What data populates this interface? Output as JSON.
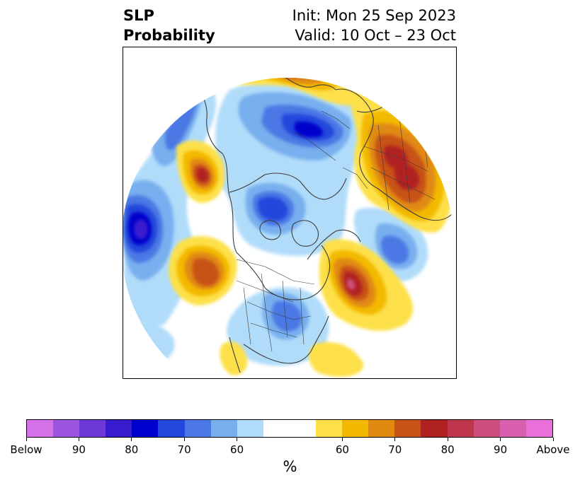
{
  "header": {
    "title_line1": "SLP",
    "title_line2": "Probability",
    "init_text": "Init: Mon 25 Sep 2023",
    "valid_text": "Valid: 10 Oct – 23 Oct"
  },
  "map": {
    "projection": "north-polar-stereographic",
    "features": [
      "coastlines",
      "country-borders",
      "us-state-borders"
    ],
    "anomalies": [
      {
        "region": "North Pacific / Gulf of Alaska",
        "category": "below",
        "level": 85
      },
      {
        "region": "Pacific Northwest coast of North America",
        "category": "above",
        "level": 75
      },
      {
        "region": "Western North Atlantic off Newfoundland",
        "category": "above",
        "level": 85
      },
      {
        "region": "Central Siberia",
        "category": "below",
        "level": 80
      },
      {
        "region": "Arctic Ocean near Greenland",
        "category": "below",
        "level": 75
      },
      {
        "region": "Central United States / Great Lakes",
        "category": "below",
        "level": 65
      },
      {
        "region": "Western Russia / Europe",
        "category": "above",
        "level": 80
      },
      {
        "region": "Kamchatka / Bering Sea",
        "category": "above",
        "level": 75
      },
      {
        "region": "Northern Russia / Arctic coast",
        "category": "above",
        "level": 65
      },
      {
        "region": "North Atlantic near Iceland",
        "category": "below",
        "level": 65
      }
    ]
  },
  "colorbar": {
    "colors": [
      "#d672e8",
      "#9b55e0",
      "#6d38d8",
      "#3a1ccf",
      "#0000cc",
      "#2447dc",
      "#4b78e4",
      "#78afee",
      "#b0dcfa",
      "#ffffff",
      "#ffffff",
      "#fde048",
      "#f3b900",
      "#e08a12",
      "#c85318",
      "#b02222",
      "#c0374d",
      "#cc4f80",
      "#d95fb0",
      "#e870d8"
    ],
    "tick_labels": [
      "Below",
      "90",
      "80",
      "70",
      "60",
      "60",
      "70",
      "80",
      "90",
      "Above"
    ],
    "label": "%"
  }
}
